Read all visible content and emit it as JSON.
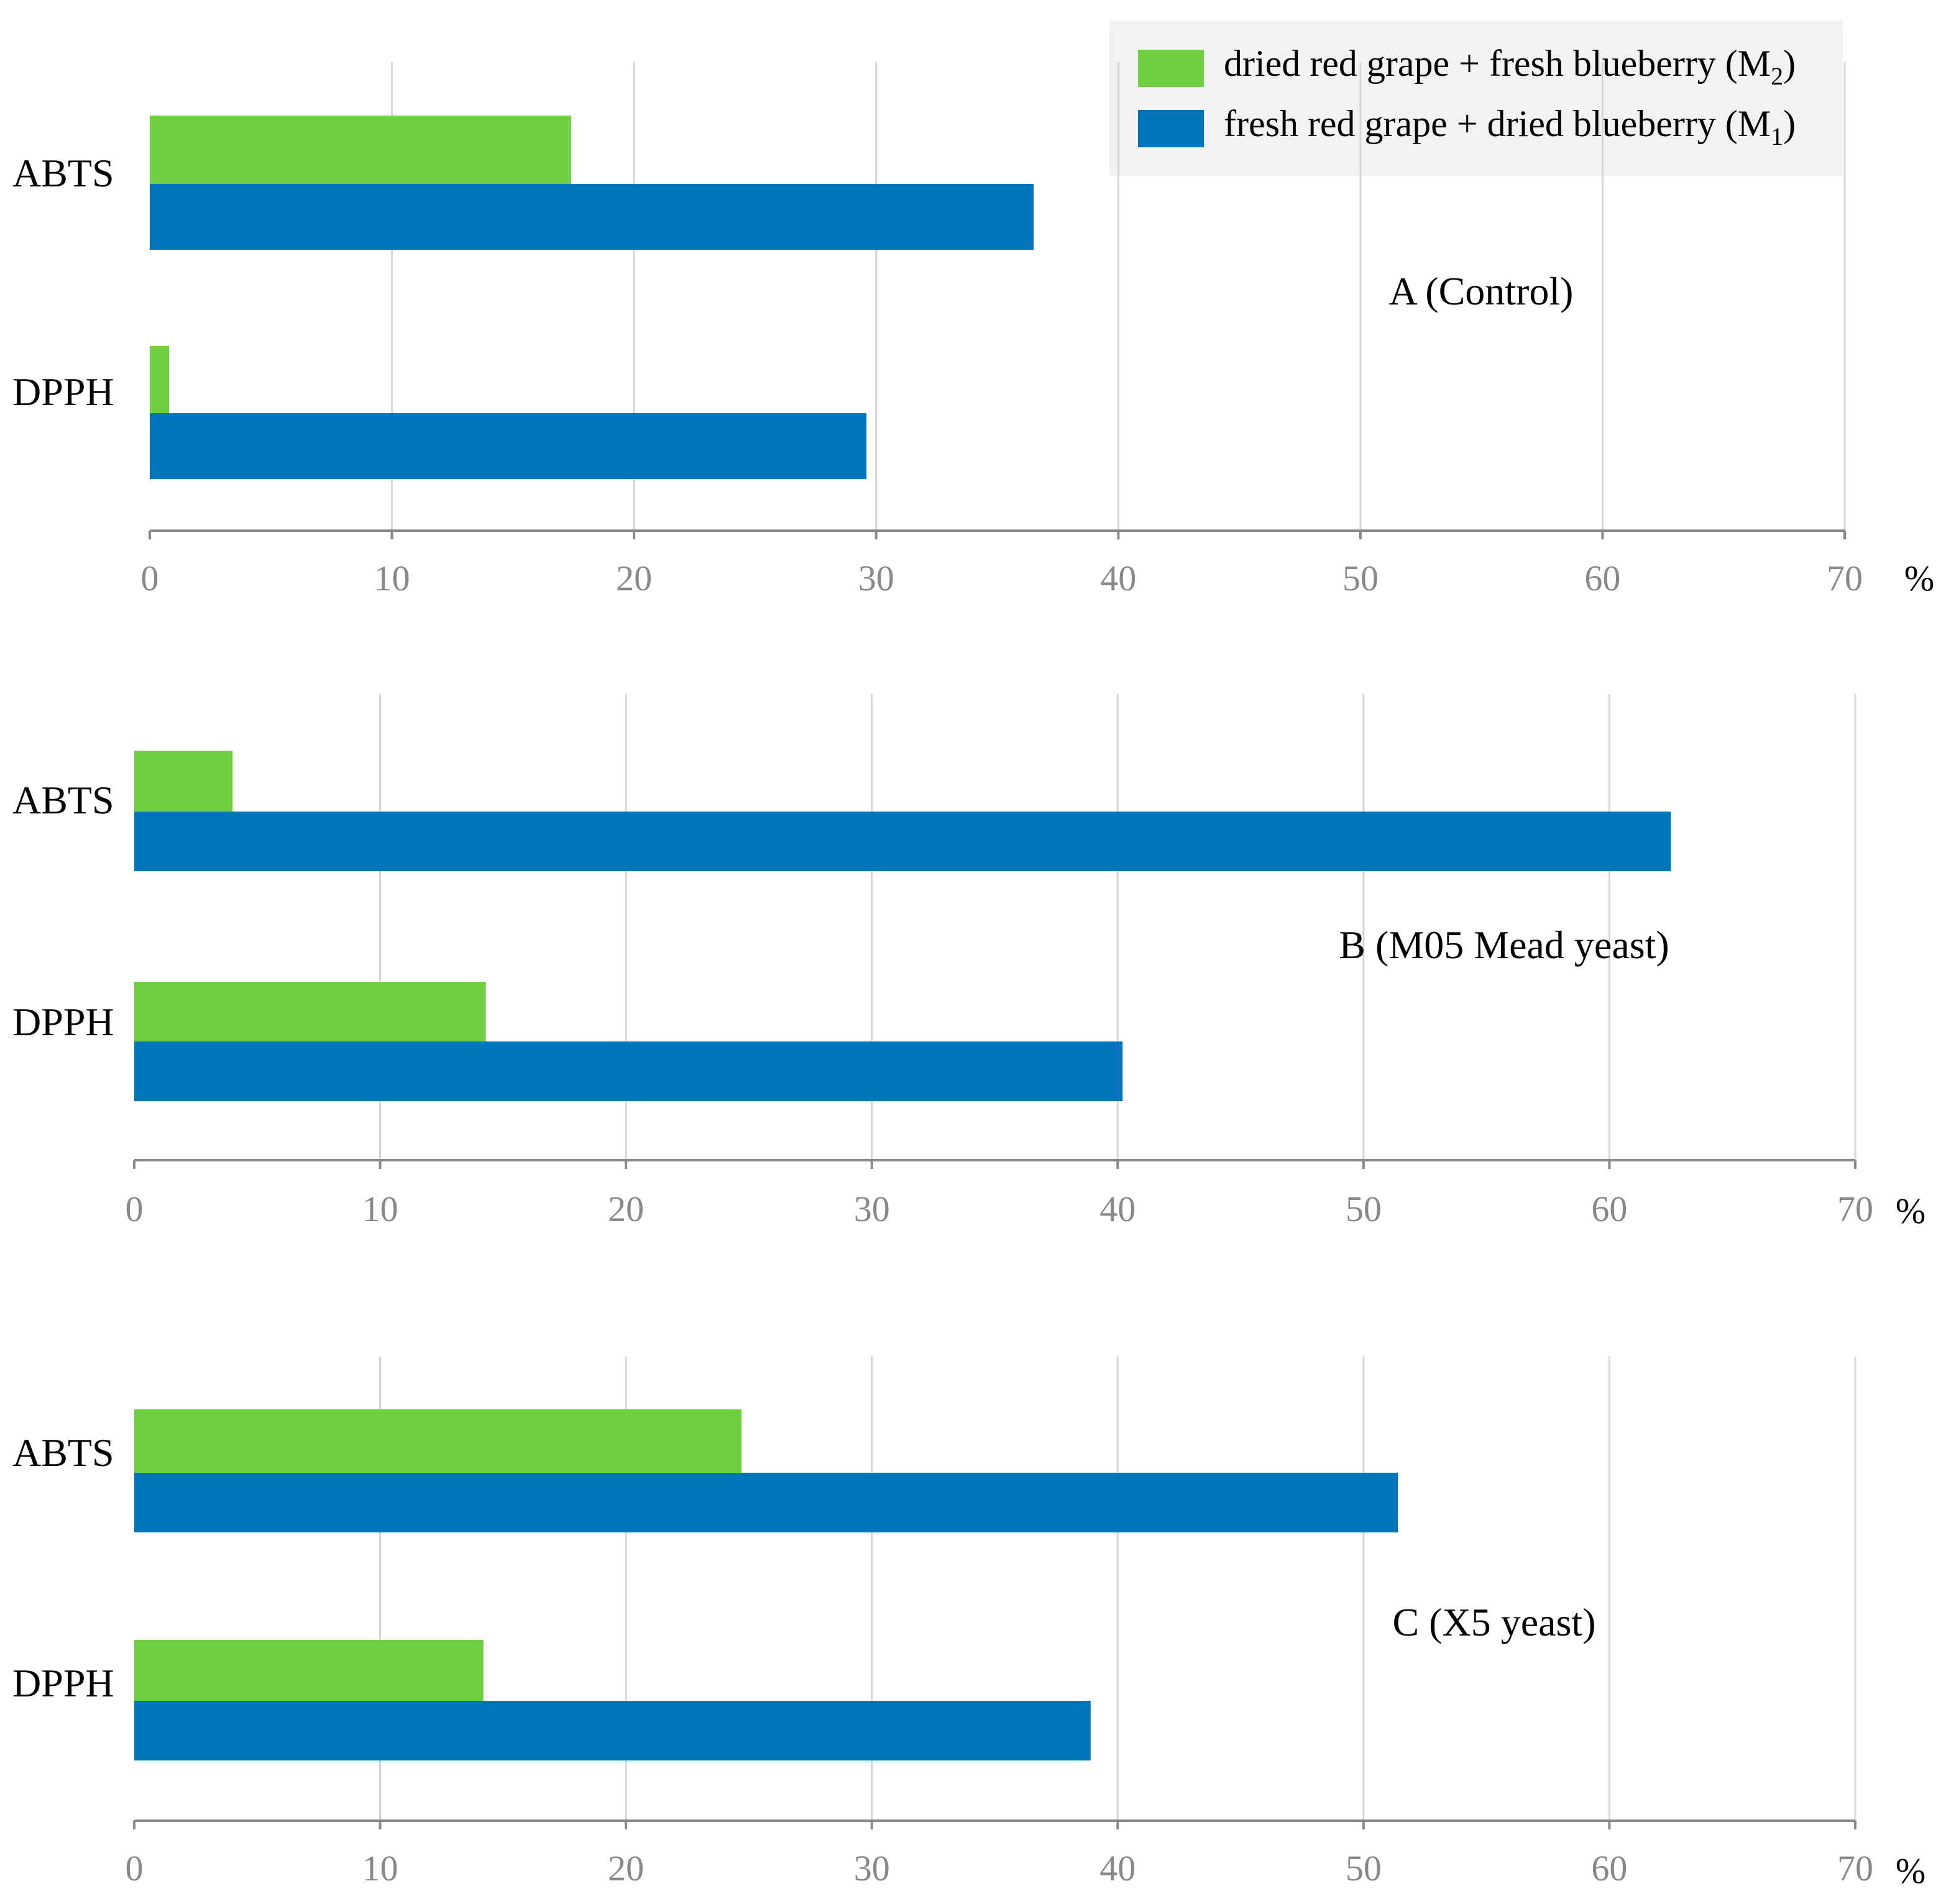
{
  "chart_data": [
    {
      "type": "bar",
      "orientation": "horizontal",
      "title": "A (Control)",
      "categories": [
        "ABTS",
        "DPPH"
      ],
      "series": [
        {
          "name": "dried red grape + fresh blueberry (M2)",
          "values": [
            17.4,
            0.8
          ]
        },
        {
          "name": "fresh red grape + dried blueberry (M1)",
          "values": [
            36.5,
            29.6
          ]
        }
      ],
      "xlim": [
        0,
        70
      ],
      "xticks": [
        "0",
        "10",
        "20",
        "30",
        "40",
        "50",
        "60",
        "70"
      ],
      "xunit": "%",
      "grid": true
    },
    {
      "type": "bar",
      "orientation": "horizontal",
      "title": "B (M05 Mead yeast)",
      "categories": [
        "ABTS",
        "DPPH"
      ],
      "series": [
        {
          "name": "dried red grape + fresh blueberry (M2)",
          "values": [
            4.0,
            14.3
          ]
        },
        {
          "name": "fresh red grape + dried blueberry (M1)",
          "values": [
            62.5,
            40.2
          ]
        }
      ],
      "xlim": [
        0,
        70
      ],
      "xticks": [
        "0",
        "10",
        "20",
        "30",
        "40",
        "50",
        "60",
        "70"
      ],
      "xunit": "%",
      "grid": true
    },
    {
      "type": "bar",
      "orientation": "horizontal",
      "title": "C (X5 yeast)",
      "categories": [
        "ABTS",
        "DPPH"
      ],
      "series": [
        {
          "name": "dried red grape + fresh blueberry (M2)",
          "values": [
            24.7,
            14.2
          ]
        },
        {
          "name": "fresh red grape + dried blueberry (M1)",
          "values": [
            51.4,
            38.9
          ]
        }
      ],
      "xlim": [
        0,
        70
      ],
      "xticks": [
        "0",
        "10",
        "20",
        "30",
        "40",
        "50",
        "60",
        "70"
      ],
      "xunit": "%",
      "grid": true
    }
  ],
  "legend": {
    "placement": "top-right",
    "items": [
      {
        "text": "dried red grape + fresh blueberry (M",
        "sub": "2",
        "close": ")",
        "color": "#6fd142"
      },
      {
        "text": "fresh red grape + dried blueberry (M",
        "sub": "1",
        "close": ")",
        "color": "#0075bb"
      }
    ]
  },
  "colors": {
    "series_m2": "#6fd142",
    "series_m1": "#0075bb",
    "grid": "#d6d6d6",
    "axis": "#888888",
    "legend_bg": "#f2f2f2"
  }
}
